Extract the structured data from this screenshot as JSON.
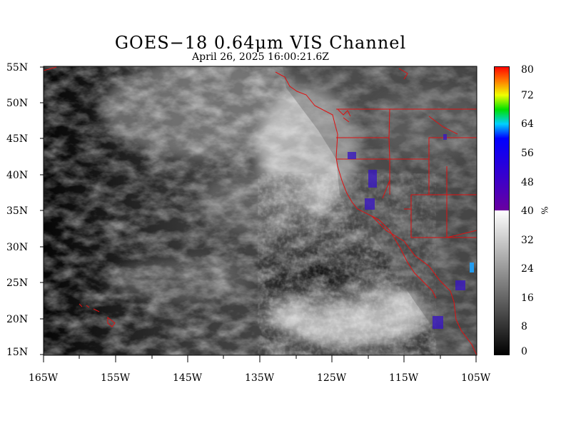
{
  "title": "GOES−18  0.64μm VIS Channel",
  "subtitle": "April 26,  2025 16:00:21.6Z",
  "lat_labels": [
    "55N",
    "50N",
    "45N",
    "40N",
    "35N",
    "30N",
    "25N",
    "20N",
    "15N"
  ],
  "lon_labels": [
    "165W",
    "155W",
    "145W",
    "135W",
    "125W",
    "115W",
    "105W"
  ],
  "colorbar": {
    "labels": [
      "80",
      "72",
      "64",
      "56",
      "48",
      "40",
      "32",
      "24",
      "16",
      "8",
      "0"
    ],
    "unit": "%",
    "range": [
      0,
      80
    ],
    "gray_max": 40
  },
  "colors": {
    "coastline": "#e01010",
    "frame": "#000000"
  }
}
